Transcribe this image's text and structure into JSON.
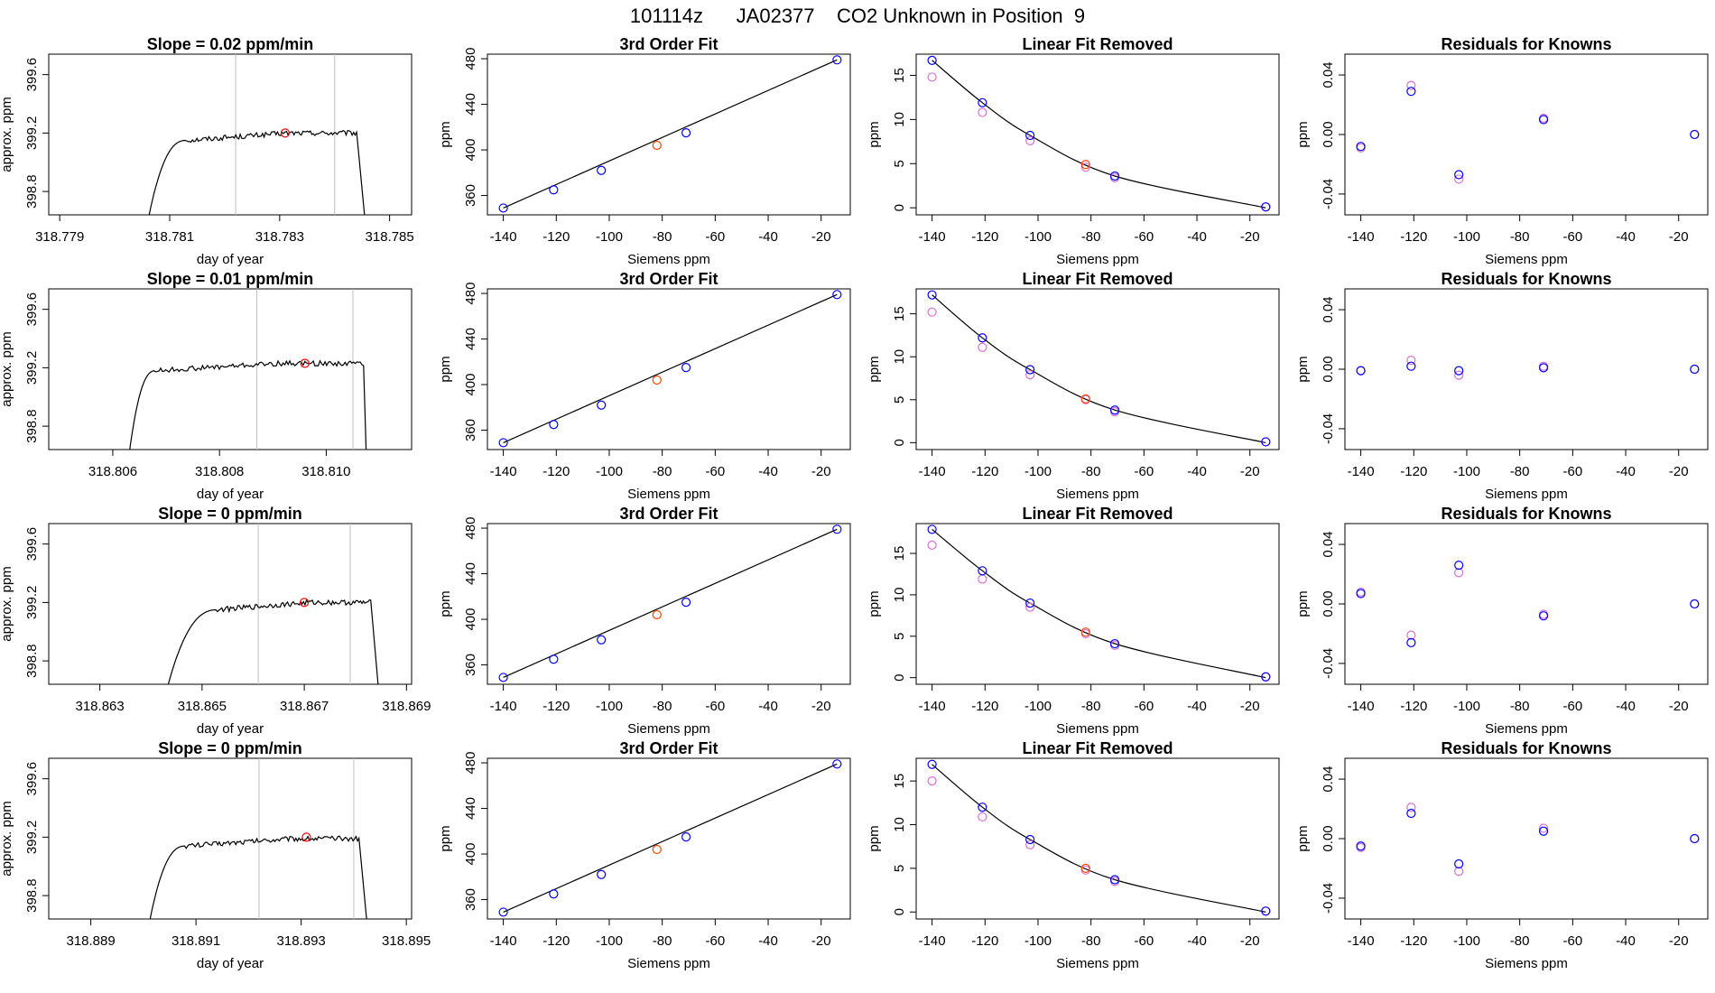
{
  "figure": {
    "title": "101114z      JA02377    CO2 Unknown in Position  9"
  },
  "colors": {
    "known": "#0000ff",
    "first_pass": "#da70d6",
    "unknown": "#ff4500",
    "trace": "#000000",
    "marker_line": "#c0c0c0",
    "raw_point": "#ff0000"
  },
  "chart_data": [
    {
      "type": "line",
      "row": 1,
      "col": 1,
      "title": "Slope =  0.02  ppm/min",
      "xlabel": "day of year",
      "ylabel": "approx. ppm",
      "xlim": [
        318.7788,
        318.7854
      ],
      "ylim": [
        398.64,
        399.74
      ],
      "xticks": [
        "318.779",
        "318.781",
        "318.783",
        "318.785"
      ],
      "yticks": [
        "398.8",
        "399.2",
        "399.6"
      ],
      "trace": {
        "start": 318.7806,
        "rise_end": 318.7813,
        "plateau": 399.2,
        "stop": 318.7844,
        "end": 318.78455
      },
      "vlines": [
        318.7822,
        318.784
      ],
      "point": {
        "x": 318.7831,
        "y": 399.2
      }
    },
    {
      "type": "line",
      "row": 2,
      "col": 1,
      "title": "Slope =  0.01  ppm/min",
      "xlabel": "day of year",
      "ylabel": "approx. ppm",
      "xlim": [
        318.8048,
        318.8116
      ],
      "ylim": [
        398.64,
        399.74
      ],
      "xticks": [
        "318.806",
        "318.808",
        "318.810"
      ],
      "yticks": [
        "398.8",
        "399.2",
        "399.6"
      ],
      "trace": {
        "start": 318.8063,
        "rise_end": 318.8068,
        "plateau": 399.23,
        "stop": 318.8107,
        "end": 318.81075
      },
      "vlines": [
        318.8087,
        318.8105
      ],
      "point": {
        "x": 318.8096,
        "y": 399.23
      }
    },
    {
      "type": "line",
      "row": 3,
      "col": 1,
      "title": "Slope =  0  ppm/min",
      "xlabel": "day of year",
      "ylabel": "approx. ppm",
      "xlim": [
        318.862,
        318.8691
      ],
      "ylim": [
        398.64,
        399.74
      ],
      "xticks": [
        "318.863",
        "318.865",
        "318.867",
        "318.869"
      ],
      "yticks": [
        "398.8",
        "399.2",
        "399.6"
      ],
      "trace": {
        "start": 318.8643,
        "rise_end": 318.8653,
        "plateau": 399.2,
        "stop": 318.8683,
        "end": 318.86845
      },
      "vlines": [
        318.8661,
        318.8679
      ],
      "point": {
        "x": 318.867,
        "y": 399.2
      }
    },
    {
      "type": "line",
      "row": 4,
      "col": 1,
      "title": "Slope =  0  ppm/min",
      "xlabel": "day of year",
      "ylabel": "approx. ppm",
      "xlim": [
        318.8882,
        318.8951
      ],
      "ylim": [
        398.64,
        399.74
      ],
      "xticks": [
        "318.889",
        "318.891",
        "318.893",
        "318.895"
      ],
      "yticks": [
        "398.8",
        "399.2",
        "399.6"
      ],
      "trace": {
        "start": 318.8901,
        "rise_end": 318.8908,
        "plateau": 399.19,
        "stop": 318.8941,
        "end": 318.89425
      },
      "vlines": [
        318.8922,
        318.894
      ],
      "point": {
        "x": 318.8931,
        "y": 399.2
      }
    },
    {
      "type": "scatter",
      "row": 1,
      "col": 2,
      "title": "3rd Order Fit",
      "xlabel": "Siemens ppm",
      "ylabel": "ppm",
      "xlim": [
        -146,
        -9
      ],
      "ylim": [
        343,
        484
      ],
      "xticks": [
        "-140",
        "-120",
        "-100",
        "-80",
        "-60",
        "-40",
        "-20"
      ],
      "yticks": [
        "360",
        "400",
        "440",
        "480"
      ],
      "knowns": [
        [
          -140,
          349
        ],
        [
          -121,
          365
        ],
        [
          -103,
          382
        ],
        [
          -71,
          415
        ],
        [
          -14,
          479
        ]
      ],
      "unknown": [
        [
          -82,
          404
        ]
      ],
      "fit_line": true
    },
    {
      "type": "scatter",
      "row": 2,
      "col": 2,
      "title": "3rd Order Fit",
      "xlabel": "Siemens ppm",
      "ylabel": "ppm",
      "xlim": [
        -146,
        -9
      ],
      "ylim": [
        343,
        484
      ],
      "xticks": [
        "-140",
        "-120",
        "-100",
        "-80",
        "-60",
        "-40",
        "-20"
      ],
      "yticks": [
        "360",
        "400",
        "440",
        "480"
      ],
      "knowns": [
        [
          -140,
          349
        ],
        [
          -121,
          365
        ],
        [
          -103,
          382
        ],
        [
          -71,
          415
        ],
        [
          -14,
          479
        ]
      ],
      "unknown": [
        [
          -82,
          404
        ]
      ],
      "fit_line": true
    },
    {
      "type": "scatter",
      "row": 3,
      "col": 2,
      "title": "3rd Order Fit",
      "xlabel": "Siemens ppm",
      "ylabel": "ppm",
      "xlim": [
        -146,
        -9
      ],
      "ylim": [
        343,
        484
      ],
      "xticks": [
        "-140",
        "-120",
        "-100",
        "-80",
        "-60",
        "-40",
        "-20"
      ],
      "yticks": [
        "360",
        "400",
        "440",
        "480"
      ],
      "knowns": [
        [
          -140,
          349
        ],
        [
          -121,
          365
        ],
        [
          -103,
          382
        ],
        [
          -71,
          415
        ],
        [
          -14,
          479
        ]
      ],
      "unknown": [
        [
          -82,
          404
        ]
      ],
      "fit_line": true
    },
    {
      "type": "scatter",
      "row": 4,
      "col": 2,
      "title": "3rd Order Fit",
      "xlabel": "Siemens ppm",
      "ylabel": "ppm",
      "xlim": [
        -146,
        -9
      ],
      "ylim": [
        343,
        484
      ],
      "xticks": [
        "-140",
        "-120",
        "-100",
        "-80",
        "-60",
        "-40",
        "-20"
      ],
      "yticks": [
        "360",
        "400",
        "440",
        "480"
      ],
      "knowns": [
        [
          -140,
          349
        ],
        [
          -121,
          365
        ],
        [
          -103,
          382
        ],
        [
          -71,
          415
        ],
        [
          -14,
          479
        ]
      ],
      "unknown": [
        [
          -82,
          404
        ]
      ],
      "fit_line": true
    },
    {
      "type": "scatter",
      "row": 1,
      "col": 3,
      "title": "Linear Fit Removed",
      "xlabel": "Siemens ppm",
      "ylabel": "ppm",
      "xlim": [
        -146,
        -9
      ],
      "ylim": [
        -0.8,
        17.4
      ],
      "xticks": [
        "-140",
        "-120",
        "-100",
        "-80",
        "-60",
        "-40",
        "-20"
      ],
      "yticks": [
        "0",
        "5",
        "10",
        "15"
      ],
      "curve": [
        [
          -140,
          16.7
        ],
        [
          -121,
          11.9
        ],
        [
          -103,
          8.2
        ],
        [
          -71,
          3.6
        ],
        [
          -14,
          0.0
        ]
      ],
      "knowns": [
        [
          -140,
          16.7
        ],
        [
          -121,
          11.9
        ],
        [
          -103,
          8.2
        ],
        [
          -71,
          3.6
        ],
        [
          -14,
          0.1
        ]
      ],
      "first_pass": [
        [
          -140,
          14.8
        ],
        [
          -121,
          10.8
        ],
        [
          -103,
          7.6
        ],
        [
          -82,
          4.6
        ],
        [
          -71,
          3.4
        ],
        [
          -14,
          0.1
        ]
      ],
      "unknown": [
        [
          -82,
          4.9
        ]
      ]
    },
    {
      "type": "scatter",
      "row": 2,
      "col": 3,
      "title": "Linear Fit Removed",
      "xlabel": "Siemens ppm",
      "ylabel": "ppm",
      "xlim": [
        -146,
        -9
      ],
      "ylim": [
        -0.8,
        17.9
      ],
      "xticks": [
        "-140",
        "-120",
        "-100",
        "-80",
        "-60",
        "-40",
        "-20"
      ],
      "yticks": [
        "0",
        "5",
        "10",
        "15"
      ],
      "curve": [
        [
          -140,
          17.2
        ],
        [
          -121,
          12.2
        ],
        [
          -103,
          8.5
        ],
        [
          -71,
          3.8
        ],
        [
          -14,
          0.0
        ]
      ],
      "knowns": [
        [
          -140,
          17.2
        ],
        [
          -121,
          12.2
        ],
        [
          -103,
          8.5
        ],
        [
          -71,
          3.8
        ],
        [
          -14,
          0.1
        ]
      ],
      "first_pass": [
        [
          -140,
          15.2
        ],
        [
          -121,
          11.1
        ],
        [
          -103,
          7.9
        ],
        [
          -82,
          5.0
        ],
        [
          -71,
          3.6
        ],
        [
          -14,
          0.1
        ]
      ],
      "unknown": [
        [
          -82,
          5.1
        ]
      ]
    },
    {
      "type": "scatter",
      "row": 3,
      "col": 3,
      "title": "Linear Fit Removed",
      "xlabel": "Siemens ppm",
      "ylabel": "ppm",
      "xlim": [
        -146,
        -9
      ],
      "ylim": [
        -0.8,
        18.6
      ],
      "xticks": [
        "-140",
        "-120",
        "-100",
        "-80",
        "-60",
        "-40",
        "-20"
      ],
      "yticks": [
        "0",
        "5",
        "10",
        "15"
      ],
      "curve": [
        [
          -140,
          17.9
        ],
        [
          -121,
          12.9
        ],
        [
          -103,
          9.0
        ],
        [
          -71,
          4.1
        ],
        [
          -14,
          0.0
        ]
      ],
      "knowns": [
        [
          -140,
          17.9
        ],
        [
          -121,
          12.9
        ],
        [
          -103,
          9.0
        ],
        [
          -71,
          4.1
        ],
        [
          -14,
          0.1
        ]
      ],
      "first_pass": [
        [
          -140,
          16.0
        ],
        [
          -121,
          11.9
        ],
        [
          -103,
          8.5
        ],
        [
          -82,
          5.3
        ],
        [
          -71,
          3.9
        ],
        [
          -14,
          0.1
        ]
      ],
      "unknown": [
        [
          -82,
          5.5
        ]
      ]
    },
    {
      "type": "scatter",
      "row": 4,
      "col": 3,
      "title": "Linear Fit Removed",
      "xlabel": "Siemens ppm",
      "ylabel": "ppm",
      "xlim": [
        -146,
        -9
      ],
      "ylim": [
        -0.8,
        17.6
      ],
      "xticks": [
        "-140",
        "-120",
        "-100",
        "-80",
        "-60",
        "-40",
        "-20"
      ],
      "yticks": [
        "0",
        "5",
        "10",
        "15"
      ],
      "curve": [
        [
          -140,
          16.9
        ],
        [
          -121,
          12.0
        ],
        [
          -103,
          8.3
        ],
        [
          -71,
          3.7
        ],
        [
          -14,
          0.0
        ]
      ],
      "knowns": [
        [
          -140,
          16.9
        ],
        [
          -121,
          12.0
        ],
        [
          -103,
          8.3
        ],
        [
          -71,
          3.7
        ],
        [
          -14,
          0.1
        ]
      ],
      "first_pass": [
        [
          -140,
          15.0
        ],
        [
          -121,
          10.9
        ],
        [
          -103,
          7.7
        ],
        [
          -82,
          4.8
        ],
        [
          -71,
          3.5
        ],
        [
          -14,
          0.1
        ]
      ],
      "unknown": [
        [
          -82,
          5.0
        ]
      ]
    },
    {
      "type": "scatter",
      "row": 1,
      "col": 4,
      "title": "Residuals for Knowns",
      "xlabel": "Siemens ppm",
      "ylabel": "ppm",
      "xlim": [
        -146,
        -9
      ],
      "ylim": [
        -0.054,
        0.054
      ],
      "xticks": [
        "-140",
        "-120",
        "-100",
        "-80",
        "-60",
        "-40",
        "-20"
      ],
      "yticks": [
        "-0.04",
        "0.00",
        "0.04"
      ],
      "knowns": [
        [
          -140,
          -0.008
        ],
        [
          -121,
          0.029
        ],
        [
          -103,
          -0.027
        ],
        [
          -71,
          0.01
        ],
        [
          -14,
          0.0
        ]
      ],
      "first_pass": [
        [
          -140,
          -0.009
        ],
        [
          -121,
          0.033
        ],
        [
          -103,
          -0.03
        ],
        [
          -71,
          0.011
        ],
        [
          -14,
          0.0
        ]
      ]
    },
    {
      "type": "scatter",
      "row": 2,
      "col": 4,
      "title": "Residuals for Knowns",
      "xlabel": "Siemens ppm",
      "ylabel": "ppm",
      "xlim": [
        -146,
        -9
      ],
      "ylim": [
        -0.054,
        0.054
      ],
      "xticks": [
        "-140",
        "-120",
        "-100",
        "-80",
        "-60",
        "-40",
        "-20"
      ],
      "yticks": [
        "-0.04",
        "0.00",
        "0.04"
      ],
      "knowns": [
        [
          -140,
          -0.001
        ],
        [
          -121,
          0.002
        ],
        [
          -103,
          -0.001
        ],
        [
          -71,
          0.001
        ],
        [
          -14,
          0.0
        ]
      ],
      "first_pass": [
        [
          -140,
          -0.001
        ],
        [
          -121,
          0.006
        ],
        [
          -103,
          -0.004
        ],
        [
          -71,
          0.002
        ],
        [
          -14,
          0.0
        ]
      ]
    },
    {
      "type": "scatter",
      "row": 3,
      "col": 4,
      "title": "Residuals for Knowns",
      "xlabel": "Siemens ppm",
      "ylabel": "ppm",
      "xlim": [
        -146,
        -9
      ],
      "ylim": [
        -0.054,
        0.054
      ],
      "xticks": [
        "-140",
        "-120",
        "-100",
        "-80",
        "-60",
        "-40",
        "-20"
      ],
      "yticks": [
        "-0.04",
        "0.00",
        "0.04"
      ],
      "knowns": [
        [
          -140,
          0.007
        ],
        [
          -121,
          -0.026
        ],
        [
          -103,
          0.026
        ],
        [
          -71,
          -0.008
        ],
        [
          -14,
          0.0
        ]
      ],
      "first_pass": [
        [
          -140,
          0.008
        ],
        [
          -121,
          -0.021
        ],
        [
          -103,
          0.021
        ],
        [
          -71,
          -0.007
        ],
        [
          -14,
          0.0
        ]
      ]
    },
    {
      "type": "scatter",
      "row": 4,
      "col": 4,
      "title": "Residuals for Knowns",
      "xlabel": "Siemens ppm",
      "ylabel": "ppm",
      "xlim": [
        -146,
        -9
      ],
      "ylim": [
        -0.054,
        0.054
      ],
      "xticks": [
        "-140",
        "-120",
        "-100",
        "-80",
        "-60",
        "-40",
        "-20"
      ],
      "yticks": [
        "-0.04",
        "0.00",
        "0.04"
      ],
      "knowns": [
        [
          -140,
          -0.005
        ],
        [
          -121,
          0.017
        ],
        [
          -103,
          -0.017
        ],
        [
          -71,
          0.005
        ],
        [
          -14,
          0.0
        ]
      ],
      "first_pass": [
        [
          -140,
          -0.006
        ],
        [
          -121,
          0.021
        ],
        [
          -103,
          -0.022
        ],
        [
          -71,
          0.007
        ],
        [
          -14,
          0.0
        ]
      ]
    }
  ]
}
